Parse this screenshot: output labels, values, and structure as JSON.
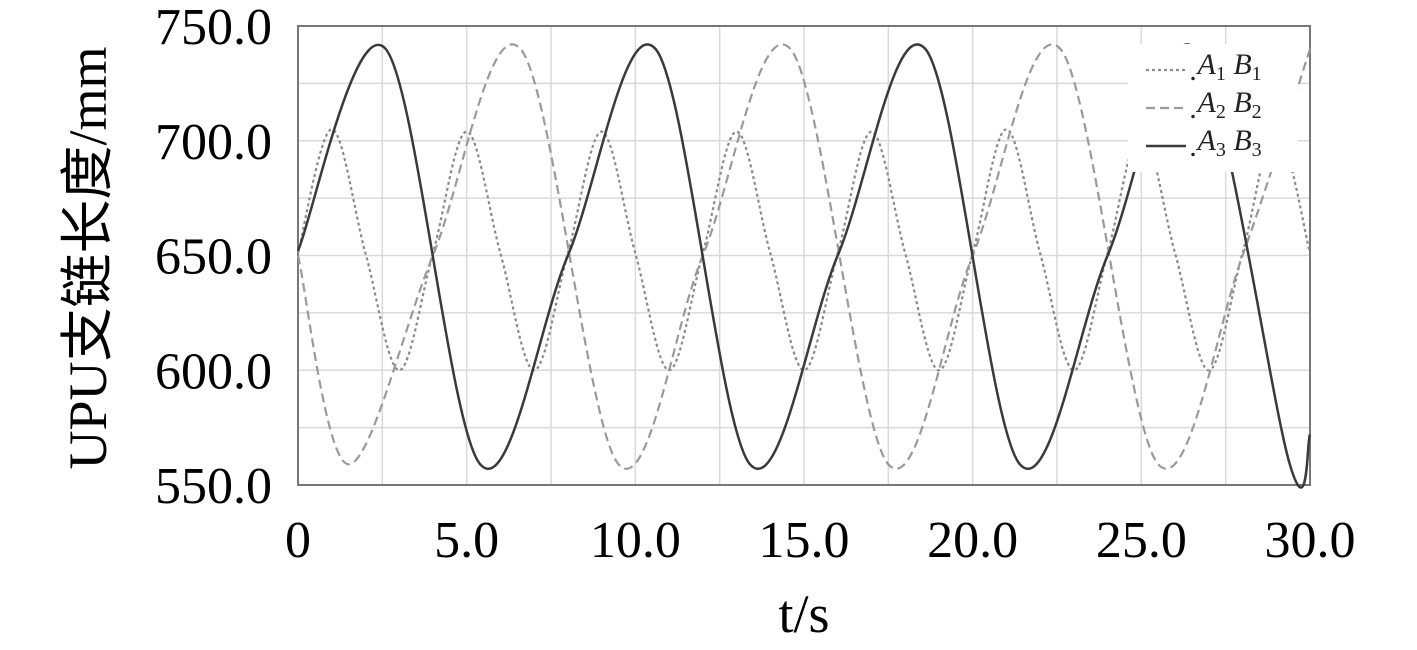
{
  "chart_data": {
    "type": "line",
    "title": "",
    "xlabel": "t/s",
    "ylabel": "UPU支链长度/mm",
    "xlim": [
      0,
      30
    ],
    "ylim": [
      550,
      750
    ],
    "x_ticks": [
      0,
      5,
      10,
      15,
      20,
      25,
      30
    ],
    "x_tick_labels": [
      "0",
      "5.0",
      "10.0",
      "15.0",
      "20.0",
      "25.0",
      "30.0"
    ],
    "y_ticks": [
      550,
      600,
      650,
      700,
      750
    ],
    "y_tick_labels": [
      "550.0",
      "600.0",
      "650.0",
      "700.0",
      "750.0"
    ],
    "grid": true,
    "legend_position": "top-right",
    "series": [
      {
        "name": ".A1 B1",
        "name_parts": {
          "dot": ".",
          "a": "A",
          "a_sub": "1",
          "b": "B",
          "b_sub": "1"
        },
        "style": "dotted",
        "color": "#8a8a8a",
        "x": [
          0,
          1.0,
          2.0,
          3.0,
          4.0,
          5.0,
          6.0,
          7.0,
          8.0,
          9.0,
          10.0,
          11.0,
          12.0,
          13.0,
          14.0,
          15.0,
          16.0,
          17.0,
          18.0,
          19.0,
          20.0,
          21.0,
          22.0,
          23.0,
          24.0,
          25.0,
          26.0,
          27.0,
          28.0,
          29.0,
          30.0
        ],
        "y": [
          651,
          705,
          651,
          600,
          651,
          704,
          651,
          600,
          651,
          704,
          651,
          600,
          651,
          704,
          651,
          600,
          651,
          704,
          651,
          600,
          651,
          705,
          651,
          600,
          651,
          704,
          651,
          600,
          651,
          705,
          651
        ]
      },
      {
        "name": ".A2 B2",
        "name_parts": {
          "dot": ".",
          "a": "A",
          "a_sub": "2",
          "b": "B",
          "b_sub": "2"
        },
        "style": "dashed",
        "color": "#9a9a9a",
        "x": [
          0,
          1.5,
          4.0,
          6.6,
          9.5,
          12.0,
          14.6,
          17.5,
          20.0,
          22.6,
          25.5,
          28.0,
          30.0
        ],
        "y": [
          650,
          559,
          650,
          740,
          559,
          650,
          740,
          559,
          650,
          740,
          559,
          650,
          740
        ]
      },
      {
        "name": ".A3 B3",
        "name_parts": {
          "dot": ".",
          "a": "A",
          "a_sub": "3",
          "b": "B",
          "b_sub": "3"
        },
        "style": "solid",
        "color": "#3a3a3a",
        "x": [
          0,
          2.6,
          5.4,
          8.0,
          10.6,
          13.4,
          16.0,
          18.6,
          21.4,
          24.0,
          26.6,
          29.4,
          30.0
        ],
        "y": [
          652,
          740,
          559,
          650,
          740,
          559,
          650,
          740,
          559,
          650,
          740,
          559,
          572
        ]
      }
    ]
  }
}
